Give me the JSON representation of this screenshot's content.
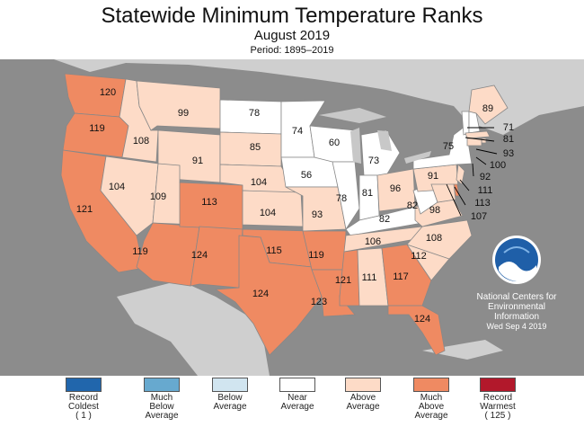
{
  "title": "Statewide Minimum Temperature Ranks",
  "subtitle": "August 2019",
  "period": "Period: 1895–2019",
  "colors": {
    "record_coldest": "#2166ac",
    "much_below": "#67a9cf",
    "below": "#d1e5f0",
    "near": "#ffffff",
    "above": "#fddbc7",
    "much_above": "#ef8a62",
    "record_warmest": "#b2182b",
    "ocean": "#8c8c8c",
    "land_foreign": "#cfcfcf",
    "lakes": "#c8c8c8"
  },
  "legend": [
    {
      "key": "record_coldest",
      "lines": [
        "Record",
        "Coldest",
        "( 1 )"
      ]
    },
    {
      "key": "much_below",
      "lines": [
        "Much",
        "Below",
        "Average"
      ]
    },
    {
      "key": "below",
      "lines": [
        "Below",
        "Average",
        ""
      ]
    },
    {
      "key": "near",
      "lines": [
        "Near",
        "Average",
        ""
      ]
    },
    {
      "key": "above",
      "lines": [
        "Above",
        "Average",
        ""
      ]
    },
    {
      "key": "much_above",
      "lines": [
        "Much",
        "Above",
        "Average"
      ]
    },
    {
      "key": "record_warmest",
      "lines": [
        "Record",
        "Warmest",
        "( 125 )"
      ]
    }
  ],
  "credit": {
    "logo_text": "NOAA",
    "line1": "National Centers for",
    "line2": "Environmental",
    "line3": "Information",
    "line4": "Wed Sep  4 2019"
  },
  "states": [
    {
      "name": "Washington",
      "rank": "120",
      "category": "much_above"
    },
    {
      "name": "Oregon",
      "rank": "119",
      "category": "much_above"
    },
    {
      "name": "California",
      "rank": "121",
      "category": "much_above"
    },
    {
      "name": "Idaho",
      "rank": "108",
      "category": "above"
    },
    {
      "name": "Nevada",
      "rank": "104",
      "category": "above"
    },
    {
      "name": "Montana",
      "rank": "99",
      "category": "above"
    },
    {
      "name": "Wyoming",
      "rank": "91",
      "category": "above"
    },
    {
      "name": "Utah",
      "rank": "109",
      "category": "above"
    },
    {
      "name": "Arizona",
      "rank": "119",
      "category": "much_above"
    },
    {
      "name": "Colorado",
      "rank": "113",
      "category": "much_above"
    },
    {
      "name": "New Mexico",
      "rank": "124",
      "category": "much_above"
    },
    {
      "name": "North Dakota",
      "rank": "78",
      "category": "near"
    },
    {
      "name": "South Dakota",
      "rank": "85",
      "category": "above"
    },
    {
      "name": "Nebraska",
      "rank": "104",
      "category": "above"
    },
    {
      "name": "Kansas",
      "rank": "104",
      "category": "above"
    },
    {
      "name": "Oklahoma",
      "rank": "115",
      "category": "much_above"
    },
    {
      "name": "Texas",
      "rank": "124",
      "category": "much_above"
    },
    {
      "name": "Minnesota",
      "rank": "74",
      "category": "near"
    },
    {
      "name": "Iowa",
      "rank": "56",
      "category": "near"
    },
    {
      "name": "Missouri",
      "rank": "93",
      "category": "above"
    },
    {
      "name": "Arkansas",
      "rank": "119",
      "category": "much_above"
    },
    {
      "name": "Louisiana",
      "rank": "123",
      "category": "much_above"
    },
    {
      "name": "Wisconsin",
      "rank": "60",
      "category": "near"
    },
    {
      "name": "Illinois",
      "rank": "78",
      "category": "near"
    },
    {
      "name": "Michigan",
      "rank": "73",
      "category": "near"
    },
    {
      "name": "Indiana",
      "rank": "81",
      "category": "near"
    },
    {
      "name": "Ohio",
      "rank": "96",
      "category": "above"
    },
    {
      "name": "Kentucky",
      "rank": "82",
      "category": "near"
    },
    {
      "name": "Tennessee",
      "rank": "106",
      "category": "above"
    },
    {
      "name": "Mississippi",
      "rank": "121",
      "category": "much_above"
    },
    {
      "name": "Alabama",
      "rank": "111",
      "category": "above"
    },
    {
      "name": "Georgia",
      "rank": "117",
      "category": "much_above"
    },
    {
      "name": "Florida",
      "rank": "124",
      "category": "much_above"
    },
    {
      "name": "South Carolina",
      "rank": "112",
      "category": "above"
    },
    {
      "name": "North Carolina",
      "rank": "108",
      "category": "above"
    },
    {
      "name": "Virginia",
      "rank": "98",
      "category": "above"
    },
    {
      "name": "West Virginia",
      "rank": "82",
      "category": "near"
    },
    {
      "name": "Pennsylvania",
      "rank": "91",
      "category": "above"
    },
    {
      "name": "New York",
      "rank": "75",
      "category": "near"
    },
    {
      "name": "Vermont",
      "rank": "71",
      "category": "near"
    },
    {
      "name": "New Hampshire",
      "rank": "81",
      "category": "near"
    },
    {
      "name": "Maine",
      "rank": "89",
      "category": "above"
    },
    {
      "name": "Massachusetts",
      "rank": "93",
      "category": "above"
    },
    {
      "name": "Rhode Island",
      "rank": "100",
      "category": "above"
    },
    {
      "name": "Connecticut",
      "rank": "92",
      "category": "above"
    },
    {
      "name": "New Jersey",
      "rank": "111",
      "category": "above"
    },
    {
      "name": "Delaware",
      "rank": "113",
      "category": "much_above"
    },
    {
      "name": "Maryland",
      "rank": "107",
      "category": "above"
    }
  ]
}
